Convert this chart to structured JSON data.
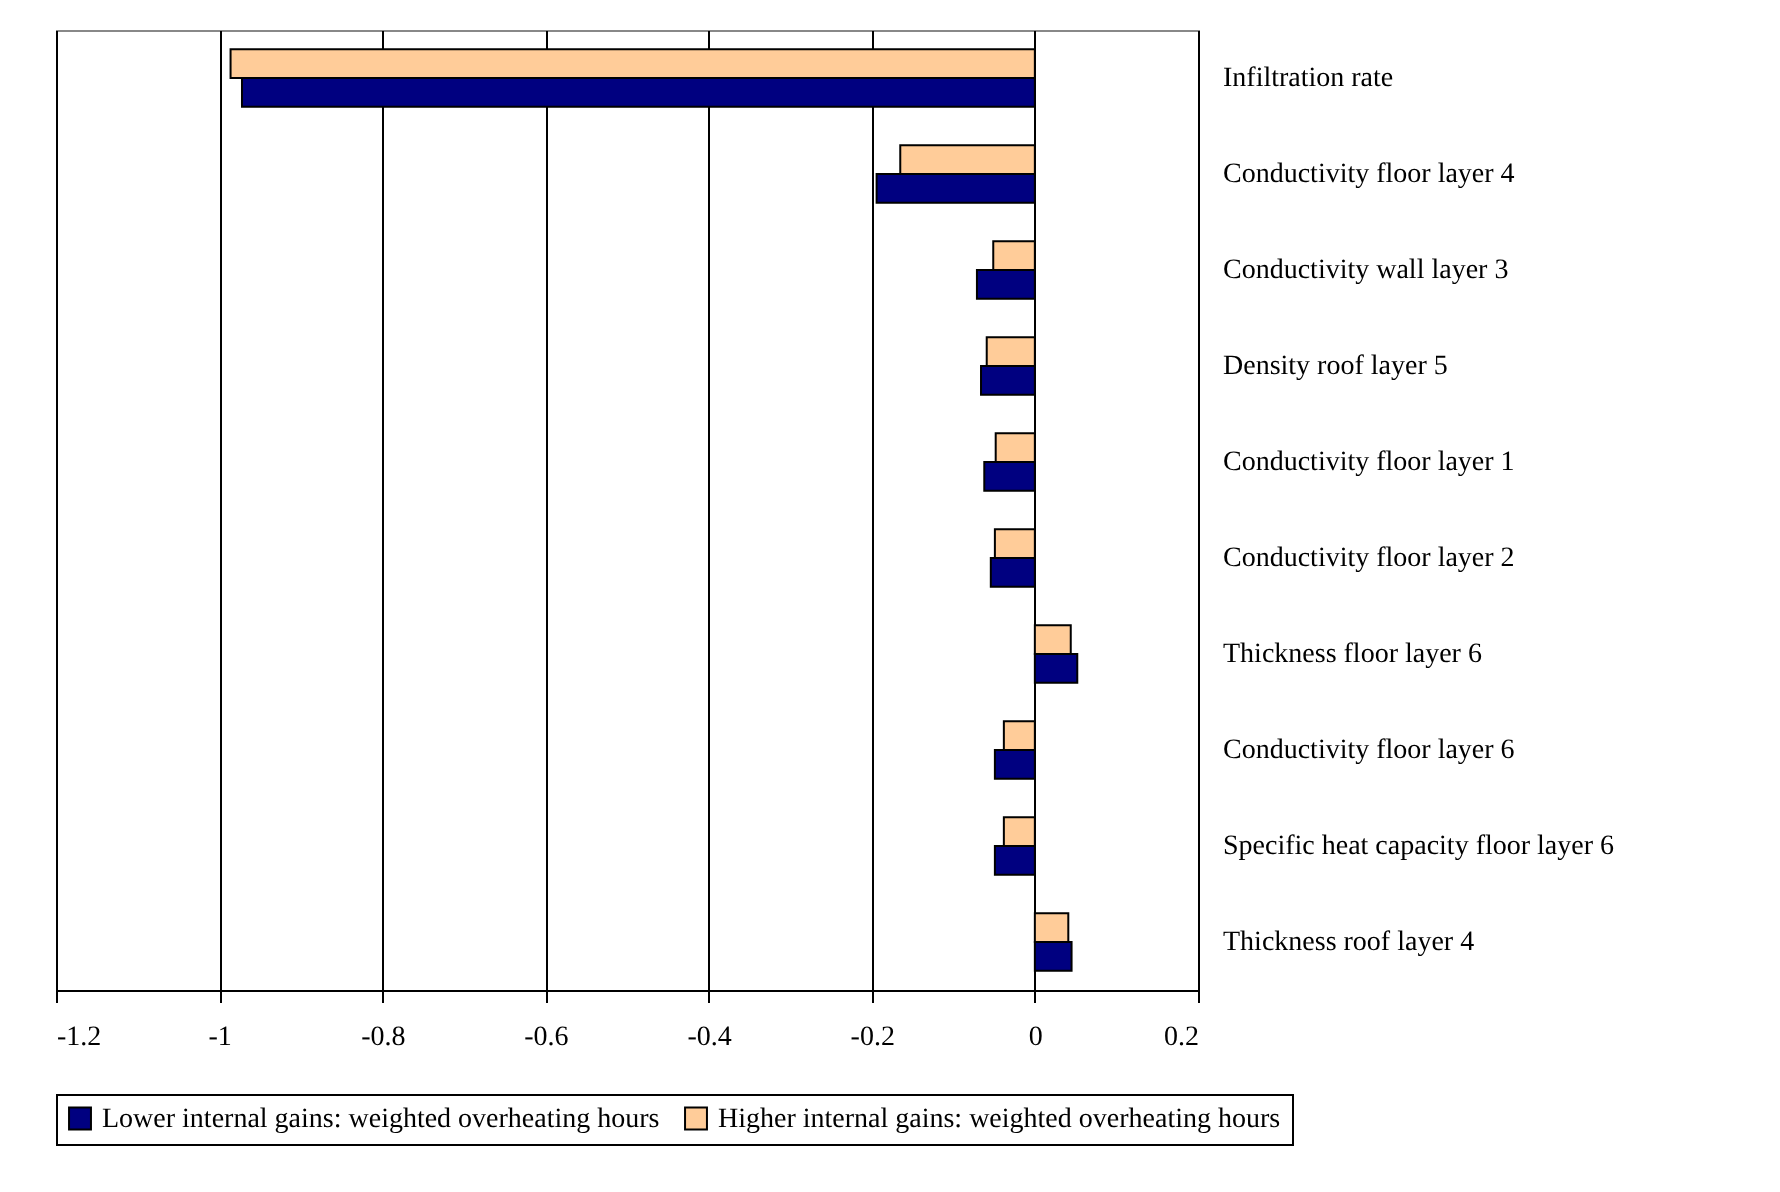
{
  "chart_data": {
    "type": "bar",
    "orientation": "horizontal",
    "categories": [
      "Infiltration rate",
      "Conductivity floor layer 4",
      "Conductivity wall layer 3",
      "Density roof layer 5",
      "Conductivity floor layer 1",
      "Conductivity floor layer 2",
      "Thickness floor layer 6",
      "Conductivity floor layer 6",
      "Specific heat capacity floor layer 6",
      "Thickness roof layer 4"
    ],
    "series": [
      {
        "name": "Lower internal gains: weighted overheating hours",
        "color": "#000080",
        "values": [
          -0.972,
          -0.194,
          -0.071,
          -0.066,
          -0.062,
          -0.054,
          0.052,
          -0.049,
          -0.049,
          0.045
        ]
      },
      {
        "name": "Higher internal gains: weighted overheating hours",
        "color": "#ffcc99",
        "values": [
          -0.986,
          -0.165,
          -0.051,
          -0.059,
          -0.048,
          -0.049,
          0.044,
          -0.038,
          -0.038,
          0.041
        ]
      }
    ],
    "xlim": [
      -1.2,
      0.2
    ],
    "xticks": [
      -1.2,
      -1,
      -0.8,
      -0.6,
      -0.4,
      -0.2,
      0,
      0.2
    ],
    "grid": "x",
    "legend": "bottom"
  }
}
